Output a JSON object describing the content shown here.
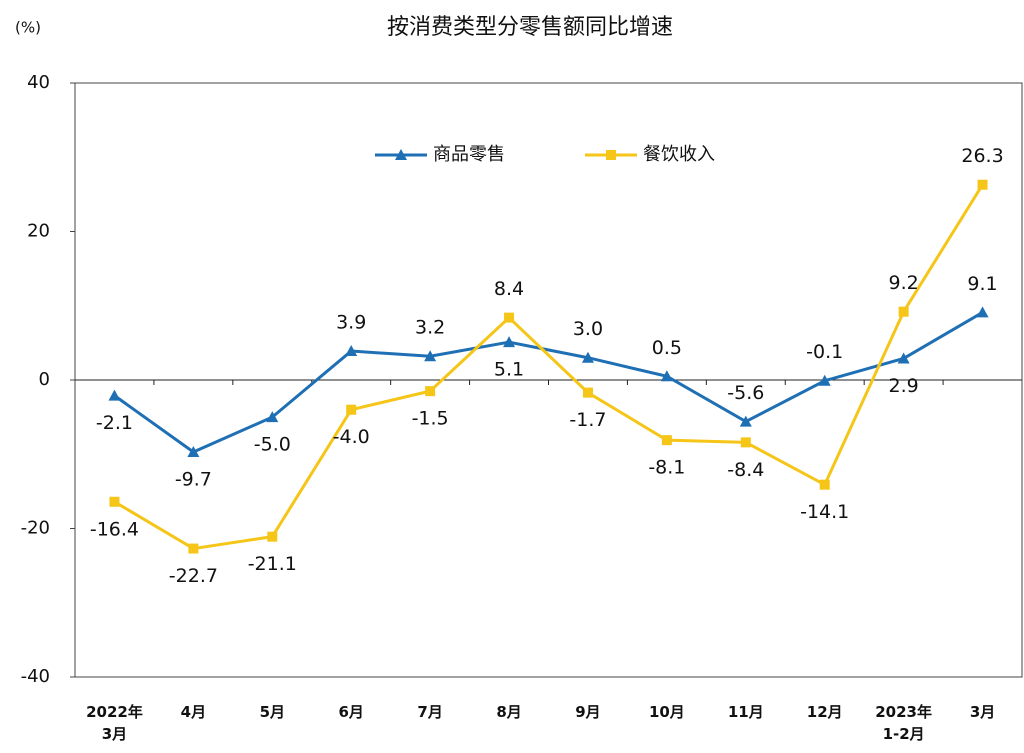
{
  "chart_data": {
    "type": "line",
    "title": "按消费类型分零售额同比增速",
    "y_unit": "(%)",
    "categories": [
      "2022年\n3月",
      "4月",
      "5月",
      "6月",
      "7月",
      "8月",
      "9月",
      "10月",
      "11月",
      "12月",
      "2023年\n1-2月",
      "3月"
    ],
    "series": [
      {
        "name": "商品零售",
        "color": "#1f6fb5",
        "marker": "triangle",
        "values": [
          -2.1,
          -9.7,
          -5.0,
          3.9,
          3.2,
          5.1,
          3.0,
          0.5,
          -5.6,
          -0.1,
          2.9,
          9.1
        ],
        "value_labels": [
          "-2.1",
          "-9.7",
          "-5.0",
          "3.9",
          "3.2",
          "5.1",
          "3.0",
          "0.5",
          "-5.6",
          "-0.1",
          "2.9",
          "9.1"
        ]
      },
      {
        "name": "餐饮收入",
        "color": "#f5c518",
        "marker": "square",
        "values": [
          -16.4,
          -22.7,
          -21.1,
          -4.0,
          -1.5,
          8.4,
          -1.7,
          -8.1,
          -8.4,
          -14.1,
          9.2,
          26.3
        ],
        "value_labels": [
          "-16.4",
          "-22.7",
          "-21.1",
          "-4.0",
          "-1.5",
          "8.4",
          "-1.7",
          "-8.1",
          "-8.4",
          "-14.1",
          "9.2",
          "26.3"
        ]
      }
    ],
    "ylim": [
      -40,
      40
    ],
    "yticks": [
      -40,
      -20,
      0,
      20,
      40
    ],
    "grid": false,
    "legend": "top"
  }
}
